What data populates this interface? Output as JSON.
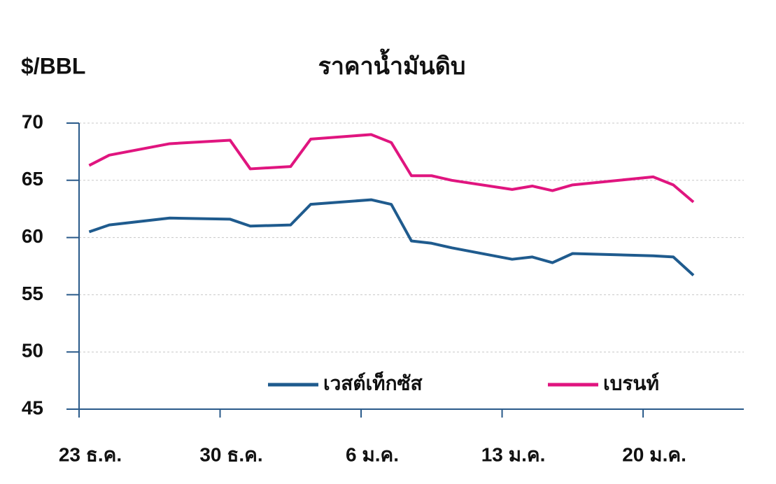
{
  "chart_data": {
    "type": "line",
    "title": "ราคาน้ำมันดิบ",
    "ylabel": "$/BBL",
    "x": [
      0.5,
      1.5,
      4.5,
      7.5,
      8.5,
      10.5,
      11.5,
      14.5,
      15.5,
      16.5,
      17.5,
      18.5,
      21.5,
      22.5,
      23.5,
      24.5,
      28.5,
      29.5,
      30.5
    ],
    "series": [
      {
        "name": "เวสต์เท็กซัส",
        "color": "#1f5b8e",
        "values": [
          60.5,
          61.1,
          61.7,
          61.6,
          61.0,
          61.1,
          62.9,
          63.3,
          62.9,
          59.7,
          59.5,
          59.1,
          58.1,
          58.3,
          57.8,
          58.6,
          58.4,
          58.3,
          56.7
        ]
      },
      {
        "name": "เบรนท์",
        "color": "#e0157f",
        "values": [
          66.3,
          67.2,
          68.2,
          68.5,
          66.0,
          66.2,
          68.6,
          69.0,
          68.3,
          65.4,
          65.4,
          65.0,
          64.2,
          64.5,
          64.1,
          64.6,
          65.3,
          64.6,
          63.1
        ]
      }
    ],
    "xlim": [
      0,
      33
    ],
    "xticks": [
      {
        "value": 0,
        "label": "23 ธ.ค."
      },
      {
        "value": 7,
        "label": "30 ธ.ค."
      },
      {
        "value": 14,
        "label": "6 ม.ค."
      },
      {
        "value": 21,
        "label": "13 ม.ค."
      },
      {
        "value": 28,
        "label": "20 ม.ค."
      }
    ],
    "ylim": [
      45,
      70
    ],
    "yticks": [
      45,
      50,
      55,
      60,
      65,
      70
    ],
    "grid": true,
    "legend": "lower right"
  }
}
